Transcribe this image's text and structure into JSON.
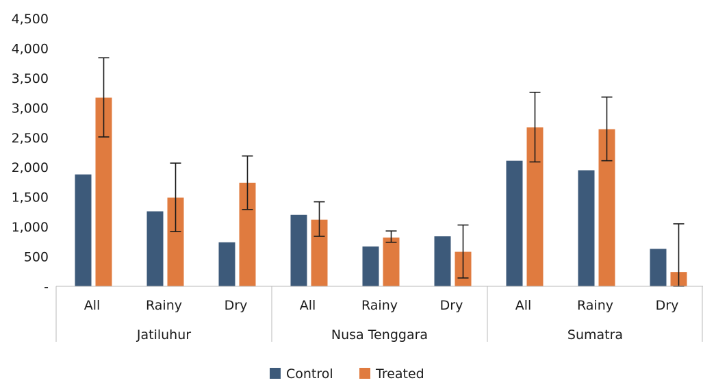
{
  "chart_data": {
    "type": "bar",
    "title": "",
    "xlabel": "",
    "ylabel": "",
    "ylim": [
      0,
      4500
    ],
    "yticks": [
      0,
      500,
      1000,
      1500,
      2000,
      2500,
      3000,
      3500,
      4000,
      4500
    ],
    "ytick_labels": [
      "-",
      "500",
      "1,000",
      "1,500",
      "2,000",
      "2,500",
      "3,000",
      "3,500",
      "4,000",
      "4,500"
    ],
    "grid": false,
    "legend_position": "bottom",
    "groups": [
      {
        "label": "Jatiluhur",
        "categories": [
          "All",
          "Rainy",
          "Dry"
        ]
      },
      {
        "label": "Nusa Tenggara",
        "categories": [
          "All",
          "Rainy",
          "Dry"
        ]
      },
      {
        "label": "Sumatra",
        "categories": [
          "All",
          "Rainy",
          "Dry"
        ]
      }
    ],
    "series": [
      {
        "name": "Control",
        "color": "#3d5a7a",
        "values": [
          1880,
          1260,
          740,
          1200,
          670,
          840,
          2110,
          1950,
          630
        ]
      },
      {
        "name": "Treated",
        "color": "#e07b3f",
        "values": [
          3170,
          1490,
          1740,
          1120,
          820,
          580,
          2670,
          2640,
          240
        ],
        "error_low": [
          2510,
          920,
          1290,
          840,
          740,
          140,
          2090,
          2110,
          0
        ],
        "error_high": [
          3840,
          2070,
          2190,
          1420,
          930,
          1030,
          3260,
          3180,
          1050
        ]
      }
    ]
  }
}
